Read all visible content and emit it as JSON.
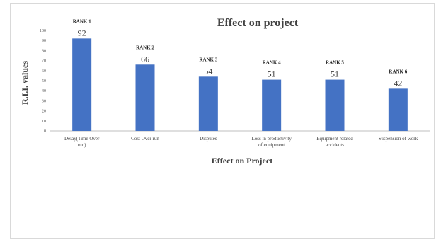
{
  "chart_data": {
    "type": "bar",
    "title": "Effect on project",
    "xlabel": "Effect on Project",
    "ylabel": "R.I.I. values",
    "ylim": [
      0,
      100
    ],
    "yticks": [
      0,
      10,
      20,
      30,
      40,
      50,
      60,
      70,
      80,
      90,
      100
    ],
    "grid": false,
    "bar_color": "#4472c4",
    "categories": [
      [
        "Delay(Time Over",
        "run)"
      ],
      [
        "Cost Over run"
      ],
      [
        "Disputes"
      ],
      [
        "Loss in productivity",
        "of equipment"
      ],
      [
        "Equipment related",
        "accidents"
      ],
      [
        "Suspension of work"
      ]
    ],
    "values": [
      92,
      66,
      54,
      51,
      51,
      42
    ],
    "rank_labels": [
      "RANK 1",
      "RANK 2",
      "RANK 3",
      "RANK 4",
      "RANK 5",
      "RANK 6"
    ]
  }
}
